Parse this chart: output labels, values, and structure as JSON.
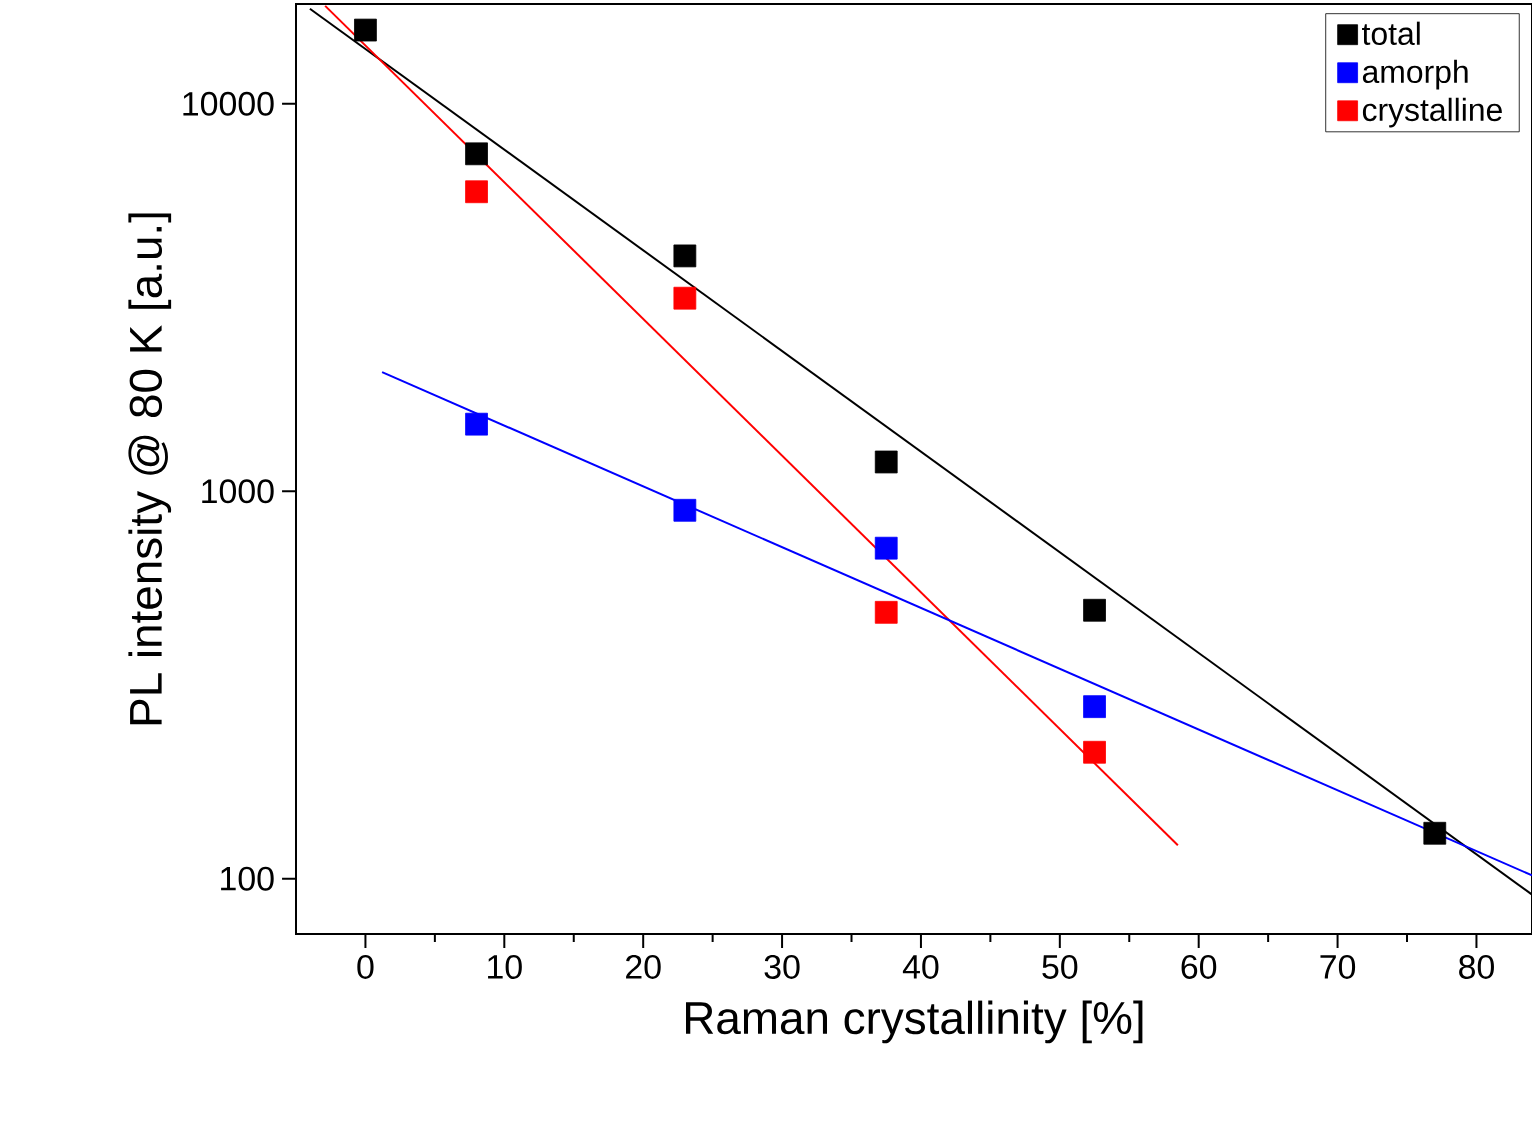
{
  "chart_data": {
    "type": "scatter",
    "xlabel": "Raman crystallinity [%]",
    "ylabel": "PL intensity @ 80 K [a.u.]",
    "log": "y",
    "xlim": [
      -5,
      84
    ],
    "ylim": [
      72,
      18100
    ],
    "xticks": [
      0,
      10,
      20,
      30,
      40,
      50,
      60,
      70,
      80
    ],
    "yticks": [
      100,
      1000,
      10000
    ],
    "legend": "top right",
    "marker": "square",
    "grid": false,
    "series": [
      {
        "name": "total",
        "color": "#000000",
        "x": [
          0,
          8,
          23,
          37.5,
          52.5,
          77
        ],
        "values": [
          15500,
          7430,
          4050,
          1190,
          493,
          131
        ]
      },
      {
        "name": "amorph",
        "color": "#0000ff",
        "x": [
          8,
          23,
          37.5,
          52.5
        ],
        "values": [
          1490,
          893,
          713,
          278
        ]
      },
      {
        "name": "crystalline",
        "color": "#ff0000",
        "x": [
          8,
          23,
          37.5,
          52.5
        ],
        "values": [
          5930,
          3150,
          487,
          212
        ]
      },
      {
        "type": "line",
        "marker": "none",
        "color": "#000000",
        "x": [
          -4,
          84
        ],
        "values": [
          17600,
          91
        ]
      },
      {
        "type": "line",
        "marker": "none",
        "color": "#ff0000",
        "x": [
          -2.9,
          58.5
        ],
        "values": [
          17900,
          122
        ]
      },
      {
        "type": "line",
        "marker": "none",
        "color": "#0000ff",
        "x": [
          1.2,
          84
        ],
        "values": [
          2030,
          102
        ]
      }
    ]
  }
}
